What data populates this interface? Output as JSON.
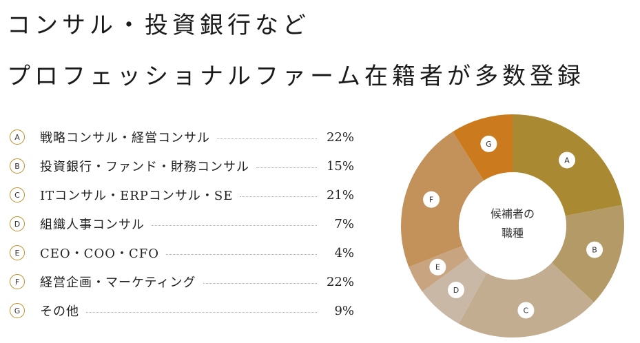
{
  "headline": {
    "line1": "コンサル・投資銀行など",
    "line2": "プロフェッショナルファーム在籍者が多数登録"
  },
  "chart_data": {
    "type": "pie",
    "donut": true,
    "center_label": [
      "候補者の",
      "職種"
    ],
    "legend_placement": "left",
    "slices": [
      {
        "key": "A",
        "label": "戦略コンサル・経営コンサル",
        "value": 22,
        "value_text": "22%",
        "color": "#a98a33"
      },
      {
        "key": "B",
        "label": "投資銀行・ファンド・財務コンサル",
        "value": 15,
        "value_text": "15%",
        "color": "#b39a66"
      },
      {
        "key": "C",
        "label": "ITコンサル・ERPコンサル・SE",
        "value": 21,
        "value_text": "21%",
        "color": "#c2ad90"
      },
      {
        "key": "D",
        "label": "組織人事コンサル",
        "value": 7,
        "value_text": "7%",
        "color": "#c9b8a6"
      },
      {
        "key": "E",
        "label": "CEO・COO・CFO",
        "value": 4,
        "value_text": "4%",
        "color": "#c8a580"
      },
      {
        "key": "F",
        "label": "経営企画・マーケティング",
        "value": 22,
        "value_text": "22%",
        "color": "#c2925a"
      },
      {
        "key": "G",
        "label": "その他",
        "value": 9,
        "value_text": "9%",
        "color": "#cc7a1e"
      }
    ]
  }
}
